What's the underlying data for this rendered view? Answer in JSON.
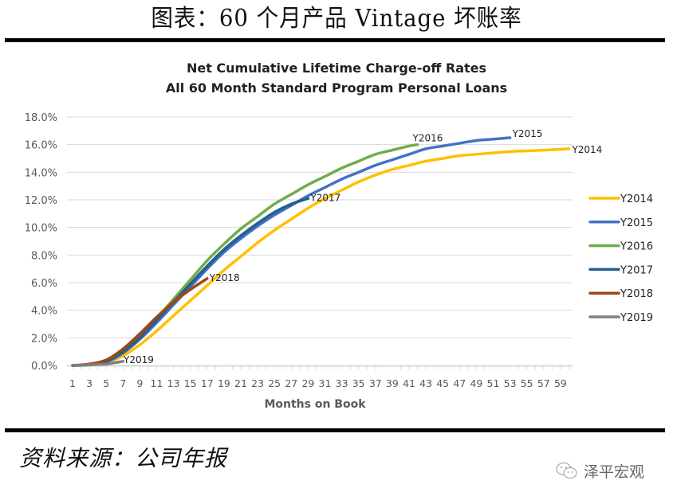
{
  "page": {
    "title": "图表：60 个月产品 Vintage 坏账率",
    "source": "资料来源：公司年报",
    "watermark": "泽平宏观",
    "watermark_icon": "wechat-icon"
  },
  "chart_data": {
    "type": "line",
    "title": "Net Cumulative Lifetime Charge-off Rates",
    "subtitle": "All 60 Month Standard Program Personal Loans",
    "xlabel": "Months on Book",
    "ylabel": "",
    "ylim": [
      0,
      18
    ],
    "xlim": [
      1,
      60
    ],
    "grid": true,
    "legend_position": "right",
    "yticks": [
      "0.0%",
      "2.0%",
      "4.0%",
      "6.0%",
      "8.0%",
      "10.0%",
      "12.0%",
      "14.0%",
      "16.0%",
      "18.0%"
    ],
    "xticks": [
      "1",
      "3",
      "5",
      "7",
      "9",
      "11",
      "13",
      "15",
      "17",
      "19",
      "21",
      "23",
      "25",
      "27",
      "29",
      "31",
      "33",
      "35",
      "37",
      "39",
      "41",
      "43",
      "45",
      "47",
      "49",
      "51",
      "53",
      "55",
      "57",
      "59"
    ],
    "series": [
      {
        "name": "Y2014",
        "color": "#FFC000",
        "end_label": "Y2014",
        "x": [
          1,
          3,
          5,
          7,
          9,
          11,
          13,
          15,
          17,
          19,
          21,
          23,
          25,
          27,
          29,
          31,
          33,
          35,
          37,
          39,
          41,
          43,
          45,
          47,
          49,
          51,
          53,
          55,
          57,
          60
        ],
        "values": [
          0,
          0.05,
          0.2,
          0.7,
          1.5,
          2.5,
          3.6,
          4.7,
          5.8,
          6.9,
          7.9,
          8.9,
          9.8,
          10.6,
          11.4,
          12.1,
          12.7,
          13.3,
          13.8,
          14.2,
          14.5,
          14.8,
          15.0,
          15.2,
          15.3,
          15.4,
          15.5,
          15.55,
          15.6,
          15.7
        ]
      },
      {
        "name": "Y2015",
        "color": "#4472C4",
        "end_label": "Y2015",
        "x": [
          1,
          3,
          5,
          7,
          9,
          11,
          13,
          15,
          17,
          19,
          21,
          23,
          25,
          27,
          29,
          31,
          33,
          35,
          37,
          39,
          41,
          43,
          45,
          47,
          49,
          51,
          53
        ],
        "values": [
          0,
          0.05,
          0.25,
          0.9,
          1.9,
          3.1,
          4.4,
          5.7,
          7.0,
          8.2,
          9.2,
          10.1,
          10.9,
          11.6,
          12.3,
          12.9,
          13.5,
          14.0,
          14.5,
          14.9,
          15.3,
          15.7,
          15.9,
          16.1,
          16.3,
          16.4,
          16.5
        ]
      },
      {
        "name": "Y2016",
        "color": "#70AD47",
        "end_label": "Y2016",
        "x": [
          1,
          3,
          5,
          7,
          9,
          11,
          13,
          15,
          17,
          19,
          21,
          23,
          25,
          27,
          29,
          31,
          33,
          35,
          37,
          39,
          41,
          42
        ],
        "values": [
          0,
          0.05,
          0.3,
          1.0,
          2.1,
          3.4,
          4.8,
          6.2,
          7.6,
          8.8,
          9.9,
          10.8,
          11.7,
          12.4,
          13.1,
          13.7,
          14.3,
          14.8,
          15.3,
          15.6,
          15.9,
          16.0
        ]
      },
      {
        "name": "Y2017",
        "color": "#255E91",
        "end_label": "Y2017",
        "x": [
          1,
          3,
          5,
          7,
          9,
          11,
          13,
          15,
          17,
          19,
          21,
          23,
          25,
          27,
          29
        ],
        "values": [
          0,
          0.05,
          0.3,
          1.0,
          2.0,
          3.3,
          4.6,
          5.9,
          7.2,
          8.4,
          9.4,
          10.3,
          11.1,
          11.7,
          12.1
        ]
      },
      {
        "name": "Y2018",
        "color": "#9E480E",
        "end_label": "Y2018",
        "x": [
          1,
          3,
          5,
          7,
          9,
          11,
          13,
          15,
          17
        ],
        "values": [
          0,
          0.1,
          0.4,
          1.2,
          2.3,
          3.5,
          4.6,
          5.5,
          6.3
        ]
      },
      {
        "name": "Y2019",
        "color": "#7F7F7F",
        "end_label": "Y2019",
        "x": [
          1,
          3,
          5,
          7
        ],
        "values": [
          0,
          0.05,
          0.1,
          0.3
        ]
      }
    ]
  }
}
